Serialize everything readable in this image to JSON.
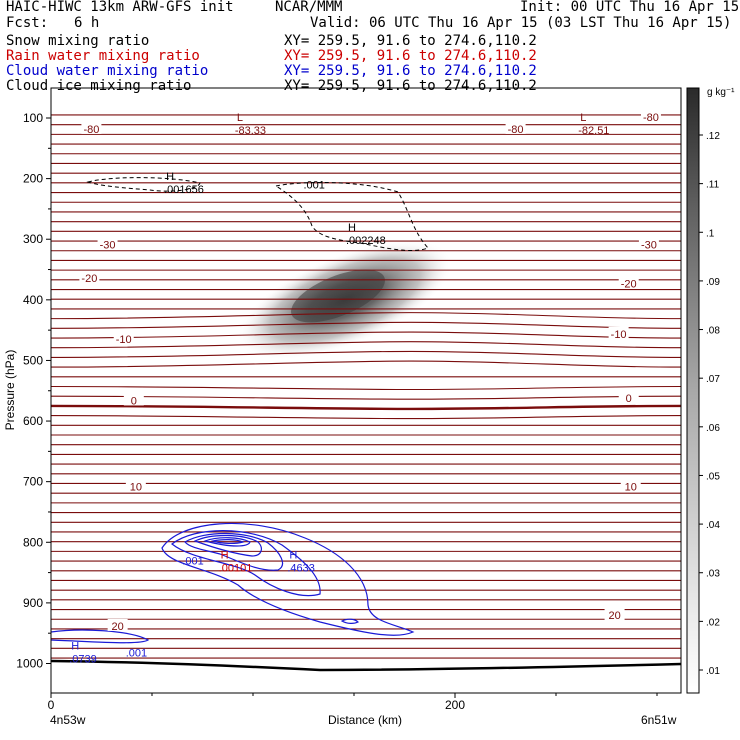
{
  "header": {
    "title_left": "HAIC-HIWC 13km ARW-GFS init",
    "org": "NCAR/MMM",
    "init": "Init: 00 UTC Thu 16 Apr 15",
    "fcst_label": "Fcst:",
    "fcst_value": "6 h",
    "valid": "Valid: 06 UTC Thu 16 Apr 15 (03 LST Thu 16 Apr 15)",
    "fields": [
      {
        "name": "Snow mixing ratio",
        "xy": "XY= 259.5, 91.6 to 274.6,110.2",
        "color": "#000000"
      },
      {
        "name": "Rain water mixing ratio",
        "xy": "XY= 259.5, 91.6 to 274.6,110.2",
        "color": "#cc0000"
      },
      {
        "name": "Cloud water mixing ratio",
        "xy": "XY= 259.5, 91.6 to 274.6,110.2",
        "color": "#0000cc"
      },
      {
        "name": "Cloud ice mixing ratio",
        "xy": "XY= 259.5, 91.6 to 274.6,110.2",
        "color": "#000000"
      }
    ]
  },
  "colors": {
    "temperature": "#7a0c0c",
    "cloud_water": "#1a1ad6",
    "rain": "#cc0000",
    "snow": "#000000",
    "terrain": "#000000"
  },
  "chart_data": {
    "type": "contour",
    "xlabel": "Distance (km)",
    "ylabel": "Pressure (hPa)",
    "x_ticks": [
      0,
      200
    ],
    "xlim": [
      0,
      300
    ],
    "y_ticks": [
      100,
      200,
      300,
      400,
      500,
      600,
      700,
      800,
      900,
      1000
    ],
    "ylim": [
      1050,
      50
    ],
    "left_endpoint": "4n53w",
    "right_endpoint": "6n51w",
    "colorbar": {
      "unit": "g kg⁻¹",
      "ticks": [
        ".12",
        ".11",
        ".1",
        ".09",
        ".08",
        ".07",
        ".06",
        ".05",
        ".04",
        ".03",
        ".02",
        ".01"
      ]
    },
    "temperature_contour_labels": [
      {
        "text": "-80",
        "x": 20,
        "p": 118
      },
      {
        "text": "-80",
        "x": 230,
        "p": 118
      },
      {
        "text": "-80",
        "x": 297,
        "p": 98
      },
      {
        "text": "-30",
        "x": 28,
        "p": 309
      },
      {
        "text": "-30",
        "x": 296,
        "p": 309
      },
      {
        "text": "-20",
        "x": 19,
        "p": 364
      },
      {
        "text": "-20",
        "x": 286,
        "p": 373
      },
      {
        "text": "-10",
        "x": 36,
        "p": 465
      },
      {
        "text": "-10",
        "x": 281,
        "p": 456
      },
      {
        "text": "0",
        "x": 41,
        "p": 566
      },
      {
        "text": "0",
        "x": 286,
        "p": 562
      },
      {
        "text": "10",
        "x": 42,
        "p": 708
      },
      {
        "text": "10",
        "x": 287,
        "p": 708
      },
      {
        "text": "20",
        "x": 33,
        "p": 938
      },
      {
        "text": "20",
        "x": 279,
        "p": 920
      }
    ],
    "extrema_labels": [
      {
        "type": "L",
        "value": "-83.33",
        "x": 92,
        "p": 108,
        "field": "temperature"
      },
      {
        "type": "L",
        "value": "-82.51",
        "x": 262,
        "p": 108,
        "field": "temperature"
      },
      {
        "type": "H",
        "value": ".001656",
        "x": 57,
        "p": 206,
        "field": "snow"
      },
      {
        "type": "H",
        "value": ".002248",
        "x": 147,
        "p": 290,
        "field": "snow"
      },
      {
        "type": "H",
        "value": ".00101",
        "x": 84,
        "p": 830,
        "field": "rain"
      },
      {
        "type": "H",
        "value": ".4633",
        "x": 118,
        "p": 830,
        "field": "cloud_water"
      },
      {
        "type": "H",
        "value": ".0739",
        "x": 10,
        "p": 980,
        "field": "cloud_water"
      }
    ],
    "contour_value_labels": [
      {
        "text": ".001",
        "x": 125,
        "p": 210,
        "field": "snow"
      },
      {
        "text": ".001",
        "x": 65,
        "p": 830,
        "field": "cloud_water"
      },
      {
        "text": ".001",
        "x": 37,
        "p": 982,
        "field": "cloud_water"
      }
    ]
  }
}
